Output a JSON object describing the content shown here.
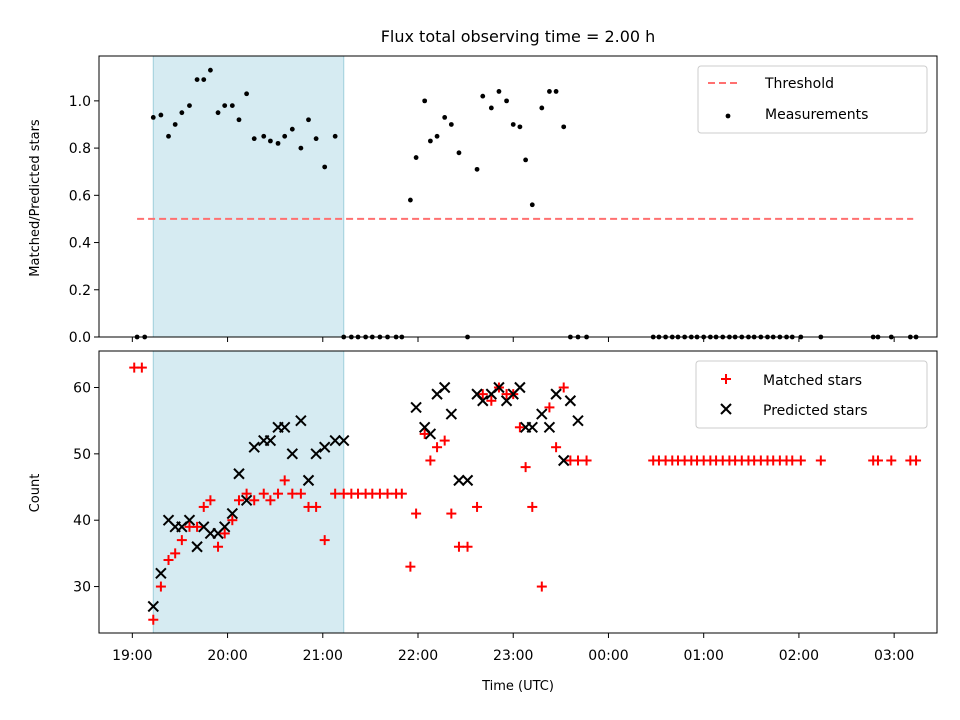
{
  "chart_data": [
    {
      "type": "scatter",
      "title": "Flux total observing time = 2.00 h",
      "xlabel": "",
      "ylabel": "Matched/Predicted stars",
      "ylim": [
        0,
        1.19
      ],
      "yticks": [
        0.0,
        0.2,
        0.4,
        0.6,
        0.8,
        1.0
      ],
      "ytick_labels": [
        "0.0",
        "0.2",
        "0.4",
        "0.6",
        "0.8",
        "1.0"
      ],
      "xlim_hours": [
        18.65,
        27.45
      ],
      "xticks_hours": [
        19,
        20,
        21,
        22,
        23,
        24,
        25,
        26,
        27
      ],
      "xtick_labels_shown": false,
      "highlight_span_hours": [
        19.22,
        21.22
      ],
      "legend_position": "top-right",
      "threshold": {
        "name": "Threshold",
        "value": 0.5,
        "x_range_hours": [
          19.05,
          27.2
        ],
        "color": "#ff7070"
      },
      "series": [
        {
          "name": "Measurements",
          "marker": "dot",
          "color": "#000000",
          "x": [
            19.05,
            19.13,
            19.22,
            19.3,
            19.38,
            19.45,
            19.52,
            19.6,
            19.68,
            19.75,
            19.82,
            19.9,
            19.97,
            20.05,
            20.12,
            20.2,
            20.28,
            20.38,
            20.45,
            20.53,
            20.6,
            20.68,
            20.77,
            20.85,
            20.93,
            21.02,
            21.13,
            21.22,
            21.3,
            21.37,
            21.45,
            21.52,
            21.6,
            21.68,
            21.77,
            21.83,
            21.92,
            21.98,
            22.07,
            22.13,
            22.2,
            22.28,
            22.35,
            22.43,
            22.52,
            22.62,
            22.68,
            22.77,
            22.85,
            22.93,
            23.0,
            23.07,
            23.13,
            23.2,
            23.3,
            23.38,
            23.45,
            23.53,
            23.6,
            23.68,
            23.77,
            24.47,
            24.53,
            24.6,
            24.67,
            24.73,
            24.8,
            24.87,
            24.93,
            25.0,
            25.07,
            25.13,
            25.2,
            25.27,
            25.33,
            25.4,
            25.47,
            25.53,
            25.6,
            25.67,
            25.73,
            25.8,
            25.87,
            25.93,
            26.02,
            26.23,
            26.78,
            26.83,
            26.97,
            27.17,
            27.23
          ],
          "values": [
            0.0,
            0.0,
            0.93,
            0.94,
            0.85,
            0.9,
            0.95,
            0.98,
            1.09,
            1.09,
            1.13,
            0.95,
            0.98,
            0.98,
            0.92,
            1.03,
            0.84,
            0.85,
            0.83,
            0.82,
            0.85,
            0.88,
            0.8,
            0.92,
            0.84,
            0.72,
            0.85,
            0.0,
            0.0,
            0.0,
            0.0,
            0.0,
            0.0,
            0.0,
            0.0,
            0.0,
            0.58,
            0.76,
            1.0,
            0.83,
            0.85,
            0.93,
            0.9,
            0.78,
            0.0,
            0.71,
            1.02,
            0.97,
            1.04,
            1.0,
            0.9,
            0.89,
            0.75,
            0.56,
            0.97,
            1.04,
            1.04,
            0.89,
            0.0,
            0.0,
            0.0,
            0.0,
            0.0,
            0.0,
            0.0,
            0.0,
            0.0,
            0.0,
            0.0,
            0.0,
            0.0,
            0.0,
            0.0,
            0.0,
            0.0,
            0.0,
            0.0,
            0.0,
            0.0,
            0.0,
            0.0,
            0.0,
            0.0,
            0.0,
            0.0,
            0.0,
            0.0,
            0.0,
            0.0,
            0.0,
            0.0
          ]
        }
      ]
    },
    {
      "type": "scatter",
      "title": "",
      "xlabel": "Time (UTC)",
      "ylabel": "Count",
      "ylim": [
        23,
        65.5
      ],
      "yticks": [
        30,
        40,
        50,
        60
      ],
      "ytick_labels": [
        "30",
        "40",
        "50",
        "60"
      ],
      "xlim_hours": [
        18.65,
        27.45
      ],
      "xticks_hours": [
        19,
        20,
        21,
        22,
        23,
        24,
        25,
        26,
        27
      ],
      "xtick_labels": [
        "19:00",
        "20:00",
        "21:00",
        "22:00",
        "23:00",
        "00:00",
        "01:00",
        "02:00",
        "03:00"
      ],
      "highlight_span_hours": [
        19.22,
        21.22
      ],
      "legend_position": "top-right",
      "series": [
        {
          "name": "Matched stars",
          "marker": "plus",
          "color": "#ff0000",
          "x": [
            19.02,
            19.1,
            19.22,
            19.3,
            19.38,
            19.45,
            19.52,
            19.6,
            19.68,
            19.75,
            19.82,
            19.9,
            19.97,
            20.05,
            20.12,
            20.2,
            20.28,
            20.38,
            20.45,
            20.53,
            20.6,
            20.68,
            20.77,
            20.85,
            20.93,
            21.02,
            21.13,
            21.22,
            21.3,
            21.37,
            21.45,
            21.52,
            21.6,
            21.68,
            21.77,
            21.83,
            21.92,
            21.98,
            22.07,
            22.13,
            22.2,
            22.28,
            22.35,
            22.43,
            22.52,
            22.62,
            22.68,
            22.77,
            22.85,
            22.93,
            23.0,
            23.07,
            23.13,
            23.2,
            23.3,
            23.38,
            23.45,
            23.53,
            23.6,
            23.68,
            23.77,
            24.47,
            24.53,
            24.6,
            24.67,
            24.73,
            24.8,
            24.87,
            24.93,
            25.0,
            25.07,
            25.13,
            25.2,
            25.27,
            25.33,
            25.4,
            25.47,
            25.53,
            25.6,
            25.67,
            25.73,
            25.8,
            25.87,
            25.93,
            26.02,
            26.23,
            26.78,
            26.83,
            26.97,
            27.17,
            27.23
          ],
          "values": [
            63,
            63,
            25,
            30,
            34,
            35,
            37,
            39,
            39,
            42,
            43,
            36,
            38,
            40,
            43,
            44,
            43,
            44,
            43,
            44,
            46,
            44,
            44,
            42,
            42,
            37,
            44,
            44,
            44,
            44,
            44,
            44,
            44,
            44,
            44,
            44,
            33,
            41,
            53,
            49,
            51,
            52,
            41,
            36,
            36,
            42,
            59,
            58,
            60,
            59,
            59,
            54,
            48,
            42,
            30,
            57,
            51,
            60,
            49,
            49,
            49,
            49,
            49,
            49,
            49,
            49,
            49,
            49,
            49,
            49,
            49,
            49,
            49,
            49,
            49,
            49,
            49,
            49,
            49,
            49,
            49,
            49,
            49,
            49,
            49,
            49,
            49,
            49,
            49,
            49,
            49
          ]
        },
        {
          "name": "Predicted stars",
          "marker": "x",
          "color": "#000000",
          "x": [
            19.22,
            19.3,
            19.38,
            19.45,
            19.52,
            19.6,
            19.68,
            19.75,
            19.82,
            19.9,
            19.97,
            20.05,
            20.12,
            20.2,
            20.28,
            20.38,
            20.45,
            20.53,
            20.6,
            20.68,
            20.77,
            20.85,
            20.93,
            21.02,
            21.13,
            21.22,
            21.98,
            22.07,
            22.13,
            22.2,
            22.28,
            22.35,
            22.43,
            22.52,
            22.62,
            22.68,
            22.77,
            22.85,
            22.93,
            23.0,
            23.07,
            23.13,
            23.2,
            23.3,
            23.38,
            23.45,
            23.53,
            23.6,
            23.68
          ],
          "values": [
            27,
            32,
            40,
            39,
            39,
            40,
            36,
            39,
            38,
            38,
            39,
            41,
            47,
            43,
            51,
            52,
            52,
            54,
            54,
            50,
            55,
            46,
            50,
            51,
            52,
            52,
            57,
            54,
            53,
            59,
            60,
            56,
            46,
            46,
            59,
            58,
            59,
            60,
            58,
            59,
            60,
            54,
            54,
            56,
            54,
            59,
            49,
            58,
            55
          ]
        }
      ]
    }
  ]
}
